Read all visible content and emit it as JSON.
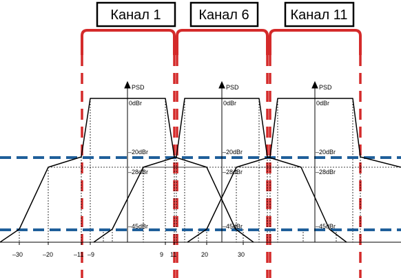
{
  "channels": [
    {
      "label": "Канал 1"
    },
    {
      "label": "Канал 6"
    },
    {
      "label": "Канал 11"
    }
  ],
  "axis_unit_label": "PSD",
  "level_labels": [
    "0dBr",
    "–20dBr",
    "–28dBr",
    "–45dBr"
  ],
  "x_tick_labels": [
    "–30",
    "–20",
    "–11",
    "–9",
    "9",
    "11",
    "20",
    "30"
  ],
  "colors": {
    "channel_bracket": "#d42a2a",
    "channel_divider": "#d42a2a",
    "level_guide": "#1f5f9a",
    "mask": "#000000",
    "label_box_border": "#000000"
  }
}
